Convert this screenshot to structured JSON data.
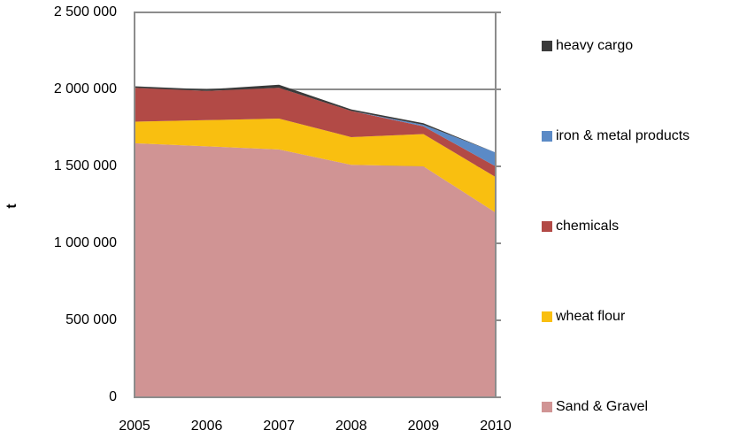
{
  "chart_data": {
    "type": "stacked-area",
    "y_label": "t",
    "categories": [
      "2005",
      "2006",
      "2007",
      "2008",
      "2009",
      "2010"
    ],
    "series": [
      {
        "name": "Sand & Gravel",
        "color": "#d09494",
        "values": [
          1650000,
          1630000,
          1610000,
          1510000,
          1500000,
          1200000
        ]
      },
      {
        "name": "wheat flour",
        "color": "#f9bf10",
        "values": [
          140000,
          170000,
          200000,
          180000,
          210000,
          230000
        ]
      },
      {
        "name": "chemicals",
        "color": "#b24a46",
        "values": [
          220000,
          190000,
          200000,
          170000,
          50000,
          70000
        ]
      },
      {
        "name": "iron & metal products",
        "color": "#5b8ac6",
        "values": [
          0,
          0,
          0,
          0,
          10000,
          90000
        ]
      },
      {
        "name": "heavy cargo",
        "color": "#3a3a3a",
        "values": [
          10000,
          10000,
          20000,
          10000,
          10000,
          0
        ]
      }
    ],
    "ylim": [
      0,
      2500000
    ],
    "yticks": [
      0,
      {
        "value": 500000,
        "label": "500 000"
      },
      {
        "value": 1000000,
        "label": "1 000 000"
      },
      {
        "value": 1500000,
        "label": "1 500 000"
      },
      {
        "value": 2000000,
        "label": "2 000 000"
      },
      {
        "value": 2500000,
        "label": "2 500 000"
      }
    ],
    "grid": true
  }
}
